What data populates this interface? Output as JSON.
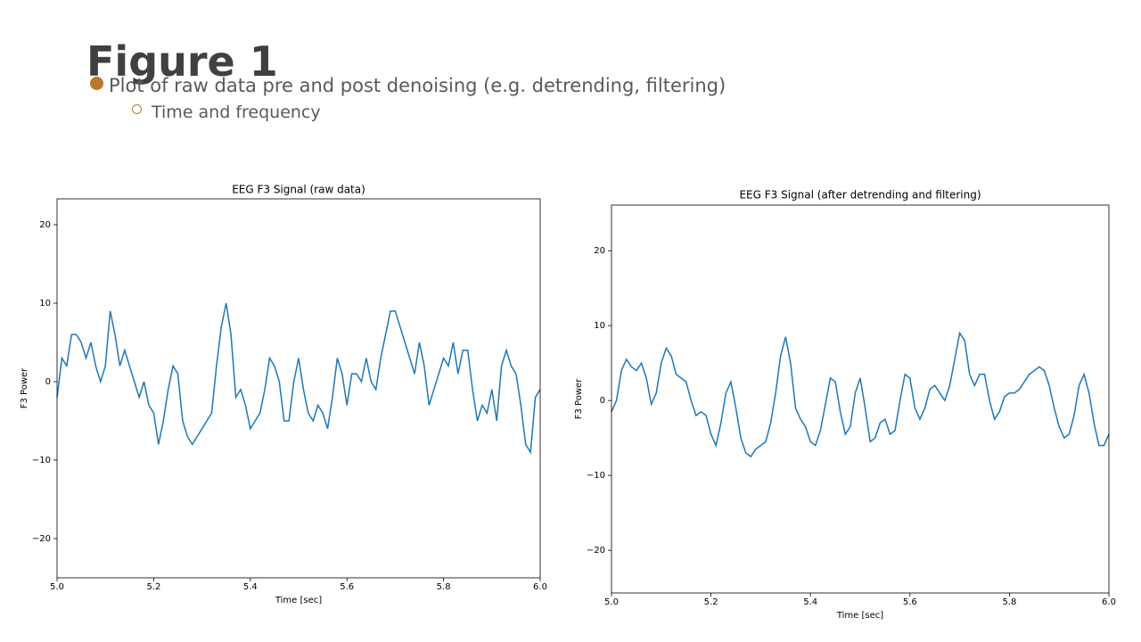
{
  "slide": {
    "title": "Figure 1",
    "bullets": [
      {
        "text": "Plot of raw data pre and post denoising (e.g. detrending, filtering)",
        "sub": [
          "Time and frequency"
        ]
      }
    ]
  },
  "chart_data": [
    {
      "type": "line",
      "title": "EEG F3 Signal (raw data)",
      "xlabel": "Time [sec]",
      "ylabel": "F3 Power",
      "color": "#1f77b4",
      "xlim": [
        5,
        6
      ],
      "ylim": [
        -25,
        23.3
      ],
      "xticks": [
        {
          "value": 5,
          "label": "5.0"
        },
        {
          "value": 5.2,
          "label": "5.2"
        },
        {
          "value": 5.4,
          "label": "5.4"
        },
        {
          "value": 5.6,
          "label": "5.6"
        },
        {
          "value": 5.8,
          "label": "5.8"
        },
        {
          "value": 6,
          "label": "6.0"
        }
      ],
      "yticks": [
        {
          "value": -20,
          "label": "−20"
        },
        {
          "value": -10,
          "label": "−10"
        },
        0,
        10,
        20
      ],
      "x": [
        5,
        5.01,
        5.02,
        5.03,
        5.04,
        5.05,
        5.06,
        5.07,
        5.08,
        5.09,
        5.1,
        5.11,
        5.12,
        5.13,
        5.14,
        5.15,
        5.16,
        5.17,
        5.18,
        5.19,
        5.2,
        5.21,
        5.22,
        5.23,
        5.24,
        5.25,
        5.26,
        5.27,
        5.28,
        5.29,
        5.3,
        5.31,
        5.32,
        5.33,
        5.34,
        5.35,
        5.36,
        5.37,
        5.38,
        5.39,
        5.4,
        5.41,
        5.42,
        5.43,
        5.44,
        5.45,
        5.46,
        5.47,
        5.48,
        5.49,
        5.5,
        5.51,
        5.52,
        5.53,
        5.54,
        5.55,
        5.56,
        5.57,
        5.58,
        5.59,
        5.6,
        5.61,
        5.62,
        5.63,
        5.64,
        5.65,
        5.66,
        5.67,
        5.68,
        5.69,
        5.7,
        5.71,
        5.72,
        5.73,
        5.74,
        5.75,
        5.76,
        5.77,
        5.78,
        5.79,
        5.8,
        5.81,
        5.82,
        5.83,
        5.84,
        5.85,
        5.86,
        5.87,
        5.88,
        5.89,
        5.9,
        5.91,
        5.92,
        5.93,
        5.94,
        5.95,
        5.96,
        5.97,
        5.98,
        5.99,
        6
      ],
      "values": [
        -2,
        3,
        2,
        6,
        6,
        5,
        3,
        5,
        2,
        0,
        2,
        9,
        6,
        2,
        4,
        2,
        0,
        -2,
        0,
        -3,
        -4,
        -8,
        -5,
        -1,
        2,
        1,
        -5,
        -7,
        -8,
        -7,
        -6,
        -5,
        -4,
        2,
        7,
        10,
        6,
        -2,
        -1,
        -3,
        -6,
        -5,
        -4,
        -1,
        3,
        2,
        0,
        -5,
        -5,
        0,
        3,
        -1,
        -4,
        -5,
        -3,
        -4,
        -6,
        -2,
        3,
        1,
        -3,
        1,
        1,
        0,
        3,
        0,
        -1,
        3,
        6,
        9,
        9,
        7,
        5,
        3,
        1,
        5,
        2,
        -3,
        -1,
        1,
        3,
        2,
        5,
        1,
        4,
        4,
        -1,
        -5,
        -3,
        -4,
        -1,
        -5,
        2,
        4,
        2,
        1,
        -3,
        -8,
        -9,
        -2,
        -1
      ]
    },
    {
      "type": "line",
      "title": "EEG F3 Signal (after detrending and filtering)",
      "xlabel": "Time [sec]",
      "ylabel": "F3 Power",
      "color": "#1f77b4",
      "xlim": [
        5,
        6
      ],
      "ylim": [
        -25.7,
        26.1
      ],
      "xticks": [
        {
          "value": 5,
          "label": "5.0"
        },
        {
          "value": 5.2,
          "label": "5.2"
        },
        {
          "value": 5.4,
          "label": "5.4"
        },
        {
          "value": 5.6,
          "label": "5.6"
        },
        {
          "value": 5.8,
          "label": "5.8"
        },
        {
          "value": 6,
          "label": "6.0"
        }
      ],
      "yticks": [
        {
          "value": -20,
          "label": "−20"
        },
        {
          "value": -10,
          "label": "−10"
        },
        0,
        10,
        20
      ],
      "x": [
        5,
        5.01,
        5.02,
        5.03,
        5.04,
        5.05,
        5.06,
        5.07,
        5.08,
        5.09,
        5.1,
        5.11,
        5.12,
        5.13,
        5.14,
        5.15,
        5.16,
        5.17,
        5.18,
        5.19,
        5.2,
        5.21,
        5.22,
        5.23,
        5.24,
        5.25,
        5.26,
        5.27,
        5.28,
        5.29,
        5.3,
        5.31,
        5.32,
        5.33,
        5.34,
        5.35,
        5.36,
        5.37,
        5.38,
        5.39,
        5.4,
        5.41,
        5.42,
        5.43,
        5.44,
        5.45,
        5.46,
        5.47,
        5.48,
        5.49,
        5.5,
        5.51,
        5.52,
        5.53,
        5.54,
        5.55,
        5.56,
        5.57,
        5.58,
        5.59,
        5.6,
        5.61,
        5.62,
        5.63,
        5.64,
        5.65,
        5.66,
        5.67,
        5.68,
        5.69,
        5.7,
        5.71,
        5.72,
        5.73,
        5.74,
        5.75,
        5.76,
        5.77,
        5.78,
        5.79,
        5.8,
        5.81,
        5.82,
        5.83,
        5.84,
        5.85,
        5.86,
        5.87,
        5.88,
        5.89,
        5.9,
        5.91,
        5.92,
        5.93,
        5.94,
        5.95,
        5.96,
        5.97,
        5.98,
        5.99,
        6
      ],
      "values": [
        -1.5,
        0,
        4,
        5.5,
        4.5,
        4,
        5,
        3,
        -0.5,
        1,
        5,
        7,
        6,
        3.5,
        3,
        2.5,
        0,
        -2,
        -1.5,
        -2,
        -4.5,
        -6,
        -3,
        1,
        2.5,
        -1,
        -5,
        -7,
        -7.5,
        -6.5,
        -6,
        -5.5,
        -3,
        1,
        6,
        8.5,
        5,
        -1,
        -2.5,
        -3.5,
        -5.5,
        -6,
        -4,
        -0.5,
        3,
        2.5,
        -1.5,
        -4.5,
        -3.5,
        1,
        3,
        -1,
        -5.5,
        -5,
        -3,
        -2.5,
        -4.5,
        -4,
        0,
        3.5,
        3,
        -1,
        -2.5,
        -1,
        1.5,
        2,
        1,
        0,
        2,
        5.5,
        9,
        8,
        3.5,
        2,
        3.5,
        3.5,
        0,
        -2.5,
        -1.5,
        0.5,
        1,
        1,
        1.5,
        2.5,
        3.5,
        4,
        4.5,
        4,
        2,
        -1,
        -3.5,
        -5,
        -4.5,
        -2,
        2,
        3.5,
        1,
        -3,
        -6,
        -6,
        -4.5
      ]
    }
  ]
}
